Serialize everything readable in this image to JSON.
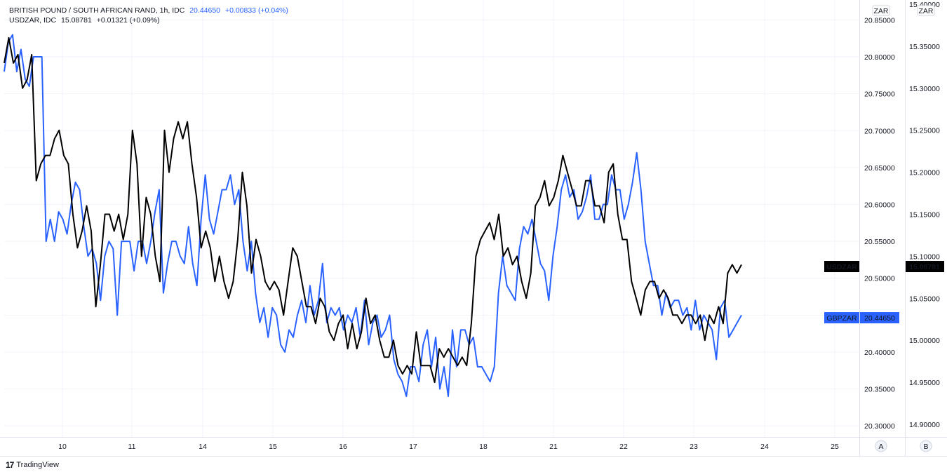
{
  "legend": {
    "line1": {
      "symbol": "BRITISH POUND / SOUTH AFRICAN RAND, 1h, IDC",
      "price": "20.44650",
      "change": "+0.00833 (+0.04%)"
    },
    "line2": {
      "symbol": "USDZAR, IDC",
      "price": "15.08781",
      "change": "+0.01321 (+0.09%)"
    }
  },
  "axes": {
    "left_scale_label": "ZAR",
    "right_scale_label": "ZAR",
    "left_button": "A",
    "right_button": "B"
  },
  "labels": {
    "usdzar_name": "USDZAR",
    "usdzar_value": "15.08781",
    "gbpzar_name": "GBPZAR",
    "gbpzar_value": "20.44650"
  },
  "footer": {
    "logo": "17",
    "brand": "TradingView"
  },
  "colors": {
    "gbpzar": "#2962ff",
    "usdzar": "#000000",
    "grid": "#f0f3fa"
  },
  "chart_data": {
    "type": "line",
    "x_ticks": [
      "10",
      "11",
      "14",
      "15",
      "16",
      "17",
      "18",
      "21",
      "22",
      "23",
      "24",
      "25"
    ],
    "y_left": {
      "label": "ZAR",
      "ticks": [
        "20.85000",
        "20.80000",
        "20.75000",
        "20.70000",
        "20.65000",
        "20.60000",
        "20.55000",
        "20.50000",
        "20.45000",
        "20.40000",
        "20.35000",
        "20.30000"
      ],
      "range": [
        20.285,
        20.877
      ]
    },
    "y_right": {
      "label": "ZAR",
      "ticks": [
        "15.40000",
        "15.35000",
        "15.30000",
        "15.25000",
        "15.20000",
        "15.15000",
        "15.10000",
        "15.05000",
        "15.00000",
        "14.95000",
        "14.90000"
      ],
      "range": [
        14.885,
        15.405
      ]
    },
    "series": [
      {
        "name": "GBPZAR",
        "axis": "left",
        "values": [
          20.78,
          20.82,
          20.83,
          20.78,
          20.81,
          20.77,
          20.76,
          20.8,
          20.8,
          20.8,
          20.55,
          20.58,
          20.55,
          20.59,
          20.58,
          20.56,
          20.6,
          20.63,
          20.62,
          20.57,
          20.53,
          20.54,
          20.52,
          20.47,
          20.53,
          20.55,
          20.54,
          20.45,
          20.55,
          20.55,
          20.55,
          20.51,
          20.55,
          20.55,
          20.52,
          20.55,
          20.59,
          20.62,
          20.48,
          20.52,
          20.55,
          20.55,
          20.53,
          20.52,
          20.57,
          20.52,
          20.49,
          20.58,
          20.64,
          20.58,
          20.56,
          20.59,
          20.62,
          20.62,
          20.64,
          20.6,
          20.62,
          20.55,
          20.51,
          20.55,
          20.48,
          20.44,
          20.46,
          20.42,
          20.46,
          20.45,
          20.41,
          20.4,
          20.43,
          20.42,
          20.45,
          20.47,
          20.44,
          20.49,
          20.45,
          20.47,
          20.52,
          20.44,
          20.46,
          20.45,
          20.46,
          20.43,
          20.45,
          20.44,
          20.46,
          20.42,
          20.47,
          20.41,
          20.44,
          20.45,
          20.42,
          20.43,
          20.45,
          20.39,
          20.37,
          20.36,
          20.34,
          20.38,
          20.38,
          20.36,
          20.41,
          20.43,
          20.38,
          20.42,
          20.35,
          20.38,
          20.34,
          20.43,
          20.38,
          20.43,
          20.43,
          20.41,
          20.42,
          20.38,
          20.38,
          20.37,
          20.36,
          20.38,
          20.48,
          20.53,
          20.49,
          20.48,
          20.47,
          20.54,
          20.57,
          20.56,
          20.58,
          20.55,
          20.52,
          20.51,
          20.47,
          20.53,
          20.57,
          20.62,
          20.64,
          20.61,
          20.62,
          20.58,
          20.59,
          20.61,
          20.64,
          20.58,
          20.58,
          20.6,
          20.6,
          20.64,
          20.62,
          20.62,
          20.58,
          20.6,
          20.63,
          20.67,
          20.62,
          20.55,
          20.52,
          20.49,
          20.49,
          20.45,
          20.48,
          20.46,
          20.47,
          20.47,
          20.45,
          20.46,
          20.43,
          20.47,
          20.43,
          20.45,
          20.44,
          20.43,
          20.39,
          20.46,
          20.47,
          20.42,
          20.43,
          20.44,
          20.45
        ]
      },
      {
        "name": "USDZAR",
        "axis": "right",
        "values": [
          15.33,
          15.36,
          15.33,
          15.34,
          15.3,
          15.31,
          15.34,
          15.19,
          15.21,
          15.22,
          15.22,
          15.24,
          15.25,
          15.22,
          15.21,
          15.15,
          15.11,
          15.13,
          15.16,
          15.13,
          15.04,
          15.09,
          15.15,
          15.15,
          15.13,
          15.15,
          15.12,
          15.15,
          15.25,
          15.21,
          15.1,
          15.17,
          15.15,
          15.1,
          15.07,
          15.25,
          15.2,
          15.24,
          15.26,
          15.24,
          15.26,
          15.21,
          15.17,
          15.11,
          15.13,
          15.11,
          15.07,
          15.1,
          15.07,
          15.05,
          15.07,
          15.12,
          15.2,
          15.16,
          15.08,
          15.12,
          15.1,
          15.07,
          15.06,
          15.07,
          15.06,
          15.03,
          15.07,
          15.11,
          15.1,
          15.07,
          15.04,
          15.04,
          15.02,
          15.05,
          15.04,
          15.01,
          15.0,
          15.02,
          15.03,
          14.99,
          15.02,
          14.99,
          15.01,
          15.05,
          15.02,
          15.03,
          15.0,
          14.98,
          14.98,
          15.0,
          14.97,
          14.96,
          14.97,
          14.96,
          15.01,
          14.97,
          14.97,
          14.97,
          14.95,
          14.99,
          14.98,
          14.99,
          14.98,
          14.97,
          14.98,
          14.97,
          15.02,
          15.1,
          15.12,
          15.13,
          15.14,
          15.12,
          15.15,
          15.1,
          15.11,
          15.09,
          15.1,
          15.07,
          15.05,
          15.08,
          15.16,
          15.17,
          15.19,
          15.16,
          15.17,
          15.19,
          15.22,
          15.2,
          15.18,
          15.16,
          15.16,
          15.19,
          15.19,
          15.16,
          15.16,
          15.14,
          15.2,
          15.21,
          15.15,
          15.12,
          15.12,
          15.07,
          15.05,
          15.03,
          15.06,
          15.07,
          15.07,
          15.05,
          15.06,
          15.05,
          15.03,
          15.03,
          15.02,
          15.03,
          15.03,
          15.02,
          15.03,
          15.0,
          15.03,
          15.02,
          15.04,
          15.02,
          15.08,
          15.09,
          15.08,
          15.09
        ]
      }
    ]
  }
}
